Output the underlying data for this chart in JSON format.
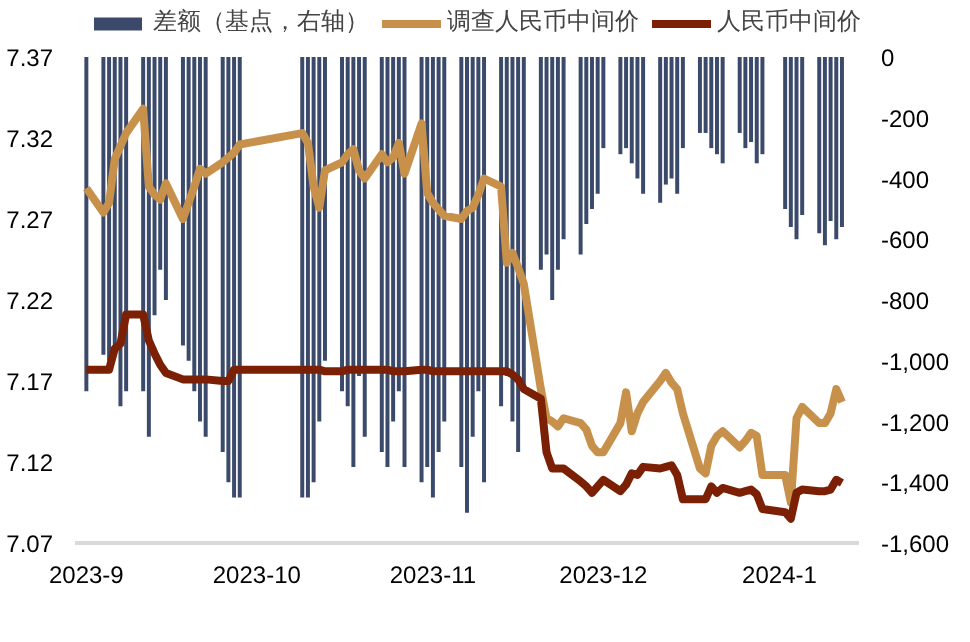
{
  "chart_data": {
    "type": "line",
    "x": [
      "2023-09-01",
      "2023-09-04",
      "2023-09-05",
      "2023-09-06",
      "2023-09-07",
      "2023-09-08",
      "2023-09-11",
      "2023-09-12",
      "2023-09-13",
      "2023-09-14",
      "2023-09-15",
      "2023-09-18",
      "2023-09-19",
      "2023-09-20",
      "2023-09-21",
      "2023-09-22",
      "2023-09-25",
      "2023-09-26",
      "2023-09-27",
      "2023-09-28",
      "2023-10-09",
      "2023-10-10",
      "2023-10-11",
      "2023-10-12",
      "2023-10-13",
      "2023-10-16",
      "2023-10-17",
      "2023-10-18",
      "2023-10-19",
      "2023-10-20",
      "2023-10-23",
      "2023-10-24",
      "2023-10-25",
      "2023-10-26",
      "2023-10-27",
      "2023-10-30",
      "2023-10-31",
      "2023-11-01",
      "2023-11-02",
      "2023-11-03",
      "2023-11-06",
      "2023-11-07",
      "2023-11-08",
      "2023-11-09",
      "2023-11-10",
      "2023-11-13",
      "2023-11-14",
      "2023-11-15",
      "2023-11-16",
      "2023-11-17",
      "2023-11-20",
      "2023-11-21",
      "2023-11-22",
      "2023-11-23",
      "2023-11-24",
      "2023-11-27",
      "2023-11-28",
      "2023-11-29",
      "2023-11-30",
      "2023-12-01",
      "2023-12-04",
      "2023-12-05",
      "2023-12-06",
      "2023-12-07",
      "2023-12-08",
      "2023-12-11",
      "2023-12-12",
      "2023-12-13",
      "2023-12-14",
      "2023-12-15",
      "2023-12-18",
      "2023-12-19",
      "2023-12-20",
      "2023-12-21",
      "2023-12-22",
      "2023-12-25",
      "2023-12-26",
      "2023-12-27",
      "2023-12-28",
      "2023-12-29",
      "2024-01-02",
      "2024-01-03",
      "2024-01-04",
      "2024-01-05",
      "2024-01-08",
      "2024-01-09",
      "2024-01-10",
      "2024-01-11",
      "2024-01-12"
    ],
    "series": [
      {
        "name": "差额（基点，右轴）",
        "type": "bar",
        "axis": "y2",
        "color": "#3b4a6b",
        "values": [
          -1100,
          -980,
          -1000,
          -950,
          -1150,
          -1100,
          -1100,
          -1250,
          -850,
          -700,
          -800,
          -950,
          -1000,
          -1100,
          -1200,
          -1250,
          -1300,
          -1400,
          -1450,
          -1450,
          -1450,
          -1450,
          -1400,
          -1200,
          -1000,
          -1100,
          -1150,
          -1350,
          -1050,
          -1250,
          -1300,
          -1350,
          -1200,
          -1100,
          -1350,
          -1400,
          -1350,
          -1450,
          -1300,
          -1200,
          -1350,
          -1500,
          -1250,
          -1100,
          -1400,
          -1150,
          -1050,
          -1200,
          -1300,
          -1100,
          -700,
          -650,
          -800,
          -700,
          -600,
          -650,
          -550,
          -500,
          -450,
          -300,
          -320,
          -300,
          -350,
          -400,
          -450,
          -480,
          -420,
          -400,
          -450,
          -300,
          -250,
          -250,
          -300,
          -320,
          -350,
          -250,
          -300,
          -280,
          -350,
          -320,
          -500,
          -560,
          -600,
          -520,
          -580,
          -620,
          -540,
          -600,
          -560
        ]
      },
      {
        "name": "调查人民币中间价",
        "color": "#c8914b",
        "values": [
          7.289,
          7.274,
          7.28,
          7.307,
          7.315,
          7.323,
          7.338,
          7.29,
          7.285,
          7.282,
          7.292,
          7.27,
          7.28,
          7.29,
          7.301,
          7.298,
          7.305,
          7.308,
          7.311,
          7.316,
          7.323,
          7.317,
          7.29,
          7.277,
          7.3,
          7.305,
          7.31,
          7.313,
          7.3,
          7.295,
          7.31,
          7.305,
          7.308,
          7.317,
          7.298,
          7.329,
          7.286,
          7.28,
          7.276,
          7.272,
          7.27,
          7.275,
          7.277,
          7.285,
          7.295,
          7.29,
          7.243,
          7.249,
          7.24,
          7.23,
          7.165,
          7.147,
          7.145,
          7.142,
          7.147,
          7.144,
          7.14,
          7.13,
          7.126,
          7.126,
          7.144,
          7.163,
          7.139,
          7.15,
          7.157,
          7.17,
          7.175,
          7.169,
          7.165,
          7.15,
          7.116,
          7.113,
          7.13,
          7.136,
          7.139,
          7.129,
          7.133,
          7.138,
          7.136,
          7.112,
          7.112,
          7.095,
          7.147,
          7.154,
          7.144,
          7.144,
          7.15,
          7.165,
          7.157
        ]
      },
      {
        "name": "人民币中间价",
        "color": "#7b2005",
        "values": [
          7.177,
          7.177,
          7.177,
          7.19,
          7.193,
          7.211,
          7.211,
          7.195,
          7.187,
          7.18,
          7.175,
          7.171,
          7.171,
          7.171,
          7.171,
          7.171,
          7.17,
          7.17,
          7.177,
          7.177,
          7.177,
          7.177,
          7.177,
          7.177,
          7.176,
          7.176,
          7.177,
          7.177,
          7.177,
          7.177,
          7.177,
          7.177,
          7.176,
          7.176,
          7.176,
          7.177,
          7.177,
          7.176,
          7.176,
          7.176,
          7.176,
          7.176,
          7.176,
          7.176,
          7.176,
          7.176,
          7.176,
          7.174,
          7.171,
          7.165,
          7.159,
          7.126,
          7.116,
          7.116,
          7.116,
          7.108,
          7.105,
          7.101,
          7.105,
          7.109,
          7.102,
          7.106,
          7.113,
          7.112,
          7.117,
          7.116,
          7.117,
          7.118,
          7.112,
          7.097,
          7.097,
          7.097,
          7.105,
          7.101,
          7.104,
          7.101,
          7.102,
          7.103,
          7.1,
          7.091,
          7.089,
          7.085,
          7.101,
          7.103,
          7.102,
          7.102,
          7.103,
          7.109,
          7.107
        ]
      }
    ],
    "xlim": [
      "2023-08-30",
      "2024-01-15"
    ],
    "xticks": [
      {
        "value": "2023-09-01",
        "label": "2023-9"
      },
      {
        "value": "2023-10-01",
        "label": "2023-10"
      },
      {
        "value": "2023-11-01",
        "label": "2023-11"
      },
      {
        "value": "2023-12-01",
        "label": "2023-12"
      },
      {
        "value": "2024-01-01",
        "label": "2024-1"
      }
    ],
    "ylim": [
      7.07,
      7.37
    ],
    "yticks": [
      7.07,
      7.12,
      7.17,
      7.22,
      7.27,
      7.32,
      7.37
    ],
    "y2lim": [
      -1600,
      0
    ],
    "y2ticks": [
      {
        "value": -1600,
        "label": "-1,600"
      },
      {
        "value": -1400,
        "label": "-1,400"
      },
      {
        "value": -1200,
        "label": "-1,200"
      },
      {
        "value": -1000,
        "label": "-1,000"
      },
      -800,
      -600,
      -400,
      -200,
      0
    ],
    "legend": "top",
    "grid": false
  }
}
